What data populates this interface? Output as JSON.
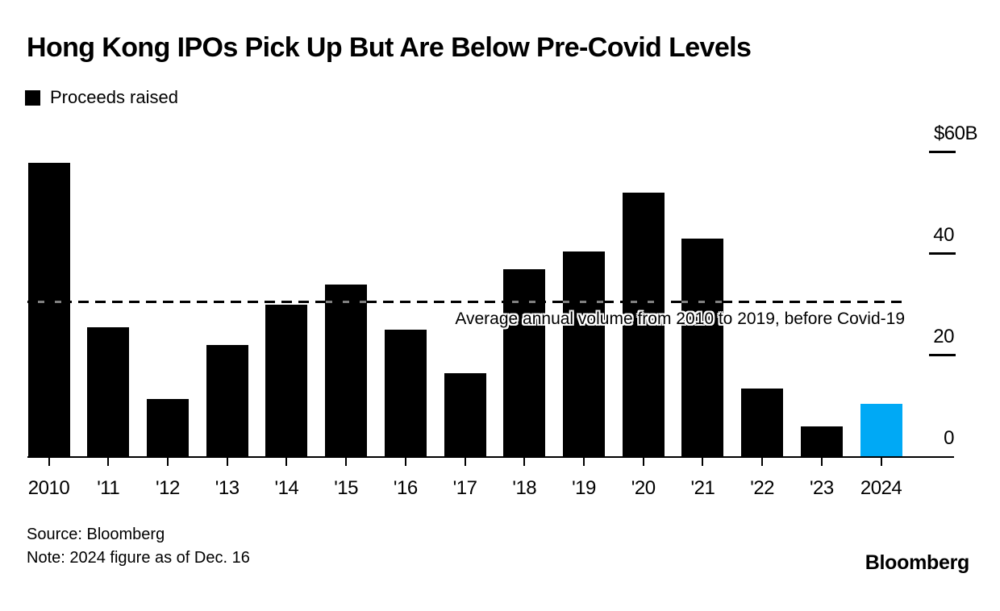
{
  "header": {
    "title": "Hong Kong IPOs Pick Up But Are Below Pre-Covid Levels",
    "legend": {
      "label": "Proceeds raised",
      "swatch_color": "#000000"
    }
  },
  "chart_data": {
    "type": "bar",
    "title": "Hong Kong IPOs Pick Up But Are Below Pre-Covid Levels",
    "series_name": "Proceeds raised",
    "unit": "$B (USD billions)",
    "categories": [
      "2010",
      "'11",
      "'12",
      "'13",
      "'14",
      "'15",
      "'16",
      "'17",
      "'18",
      "'19",
      "'20",
      "'21",
      "'22",
      "'23",
      "2024"
    ],
    "values": [
      58,
      25.5,
      11.5,
      22,
      30,
      34,
      25,
      16.5,
      37,
      40.5,
      52,
      43,
      13.5,
      6,
      10.5
    ],
    "ylim": [
      0,
      60
    ],
    "yticks": [
      {
        "label": "$60B",
        "value": 60
      },
      {
        "label": "40",
        "value": 40
      },
      {
        "label": "20",
        "value": 20
      },
      {
        "label": "0",
        "value": 0
      }
    ],
    "reference_line": {
      "value": 30.3,
      "style": "dashed",
      "label": "Average annual volume from 2010 to 2019, before Covid-19"
    },
    "bar_colors": {
      "default": "#000000",
      "highlight": "#00A9F5",
      "highlight_category": "2024",
      "highlight_index": 14
    },
    "legend_position": "top-left",
    "grid": false
  },
  "footer": {
    "source": "Source: Bloomberg",
    "note": "Note: 2024 figure as of Dec. 16",
    "brand": "Bloomberg"
  }
}
